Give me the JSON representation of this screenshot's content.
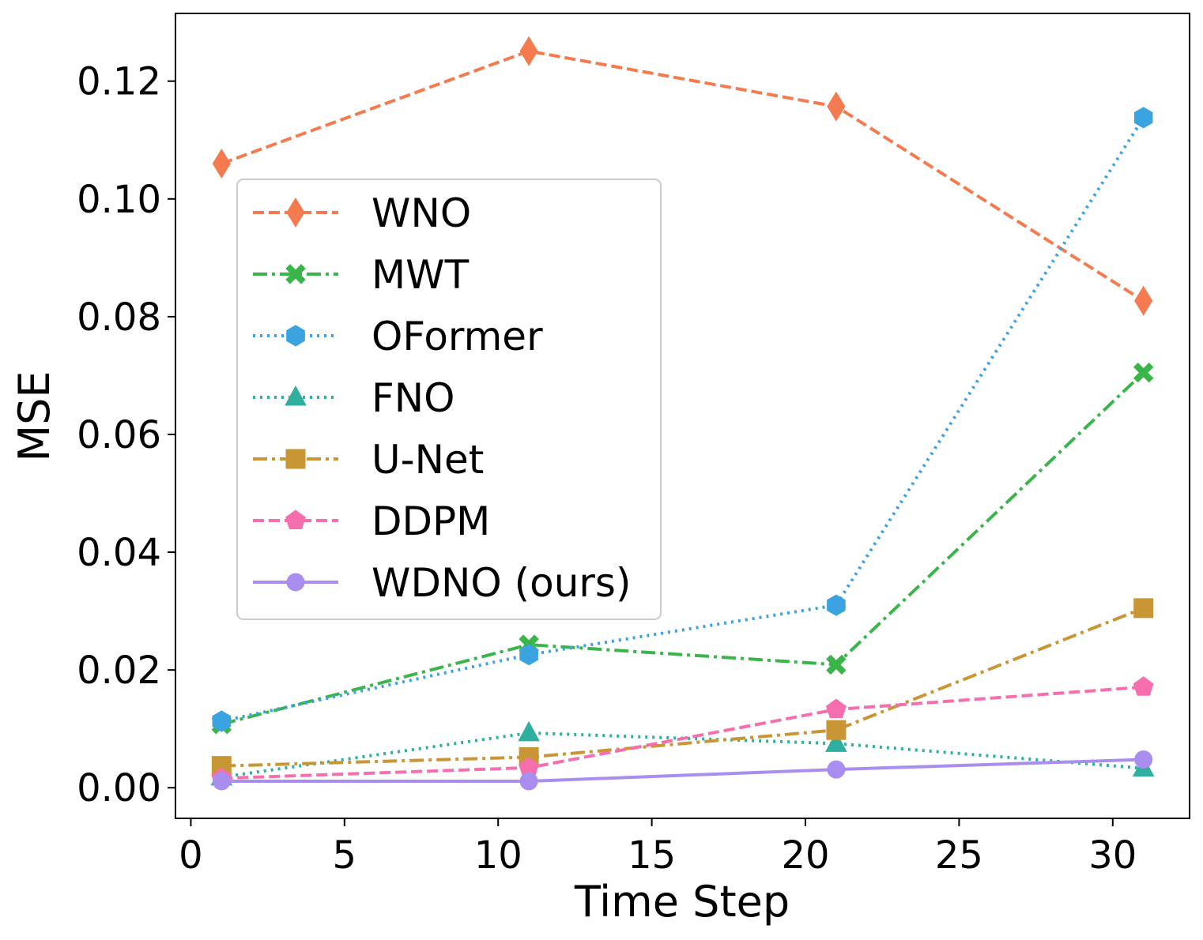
{
  "chart_data": {
    "type": "line",
    "title": "",
    "xlabel": "Time Step",
    "ylabel": "MSE",
    "xlim": [
      -0.5,
      32.5
    ],
    "ylim": [
      -0.0052,
      0.1315
    ],
    "xticks": [
      0,
      5,
      10,
      15,
      20,
      25,
      30
    ],
    "xtick_labels": [
      "0",
      "5",
      "10",
      "15",
      "20",
      "25",
      "30"
    ],
    "yticks": [
      0.0,
      0.02,
      0.04,
      0.06,
      0.08,
      0.1,
      0.12
    ],
    "ytick_labels": [
      "0.00",
      "0.02",
      "0.04",
      "0.06",
      "0.08",
      "0.10",
      "0.12"
    ],
    "grid": false,
    "legend_position": "center-left",
    "x": [
      1,
      11,
      21,
      31
    ],
    "series": [
      {
        "name": "WNO",
        "values": [
          0.106,
          0.1251,
          0.1157,
          0.0827
        ],
        "color": "#f47a50",
        "marker": "diamond",
        "linestyle": "dashed"
      },
      {
        "name": "MWT",
        "values": [
          0.0108,
          0.0243,
          0.0209,
          0.0705
        ],
        "color": "#39b54a",
        "marker": "x",
        "linestyle": "dashdot"
      },
      {
        "name": "OFormer",
        "values": [
          0.0113,
          0.0226,
          0.031,
          0.1138
        ],
        "color": "#3aa3e0",
        "marker": "hexagon",
        "linestyle": "dotted"
      },
      {
        "name": "FNO",
        "values": [
          0.0018,
          0.0093,
          0.0075,
          0.0033
        ],
        "color": "#2fb09f",
        "marker": "triangle",
        "linestyle": "dotted"
      },
      {
        "name": "U-Net",
        "values": [
          0.0037,
          0.0052,
          0.0098,
          0.0305
        ],
        "color": "#c89634",
        "marker": "square",
        "linestyle": "dashdot"
      },
      {
        "name": "DDPM",
        "values": [
          0.0016,
          0.0034,
          0.0133,
          0.0171
        ],
        "color": "#f56fae",
        "marker": "pentagon",
        "linestyle": "dashed"
      },
      {
        "name": "WDNO (ours)",
        "values": [
          0.0011,
          0.0011,
          0.0031,
          0.0048
        ],
        "color": "#a98ef0",
        "marker": "circle",
        "linestyle": "solid"
      }
    ]
  }
}
